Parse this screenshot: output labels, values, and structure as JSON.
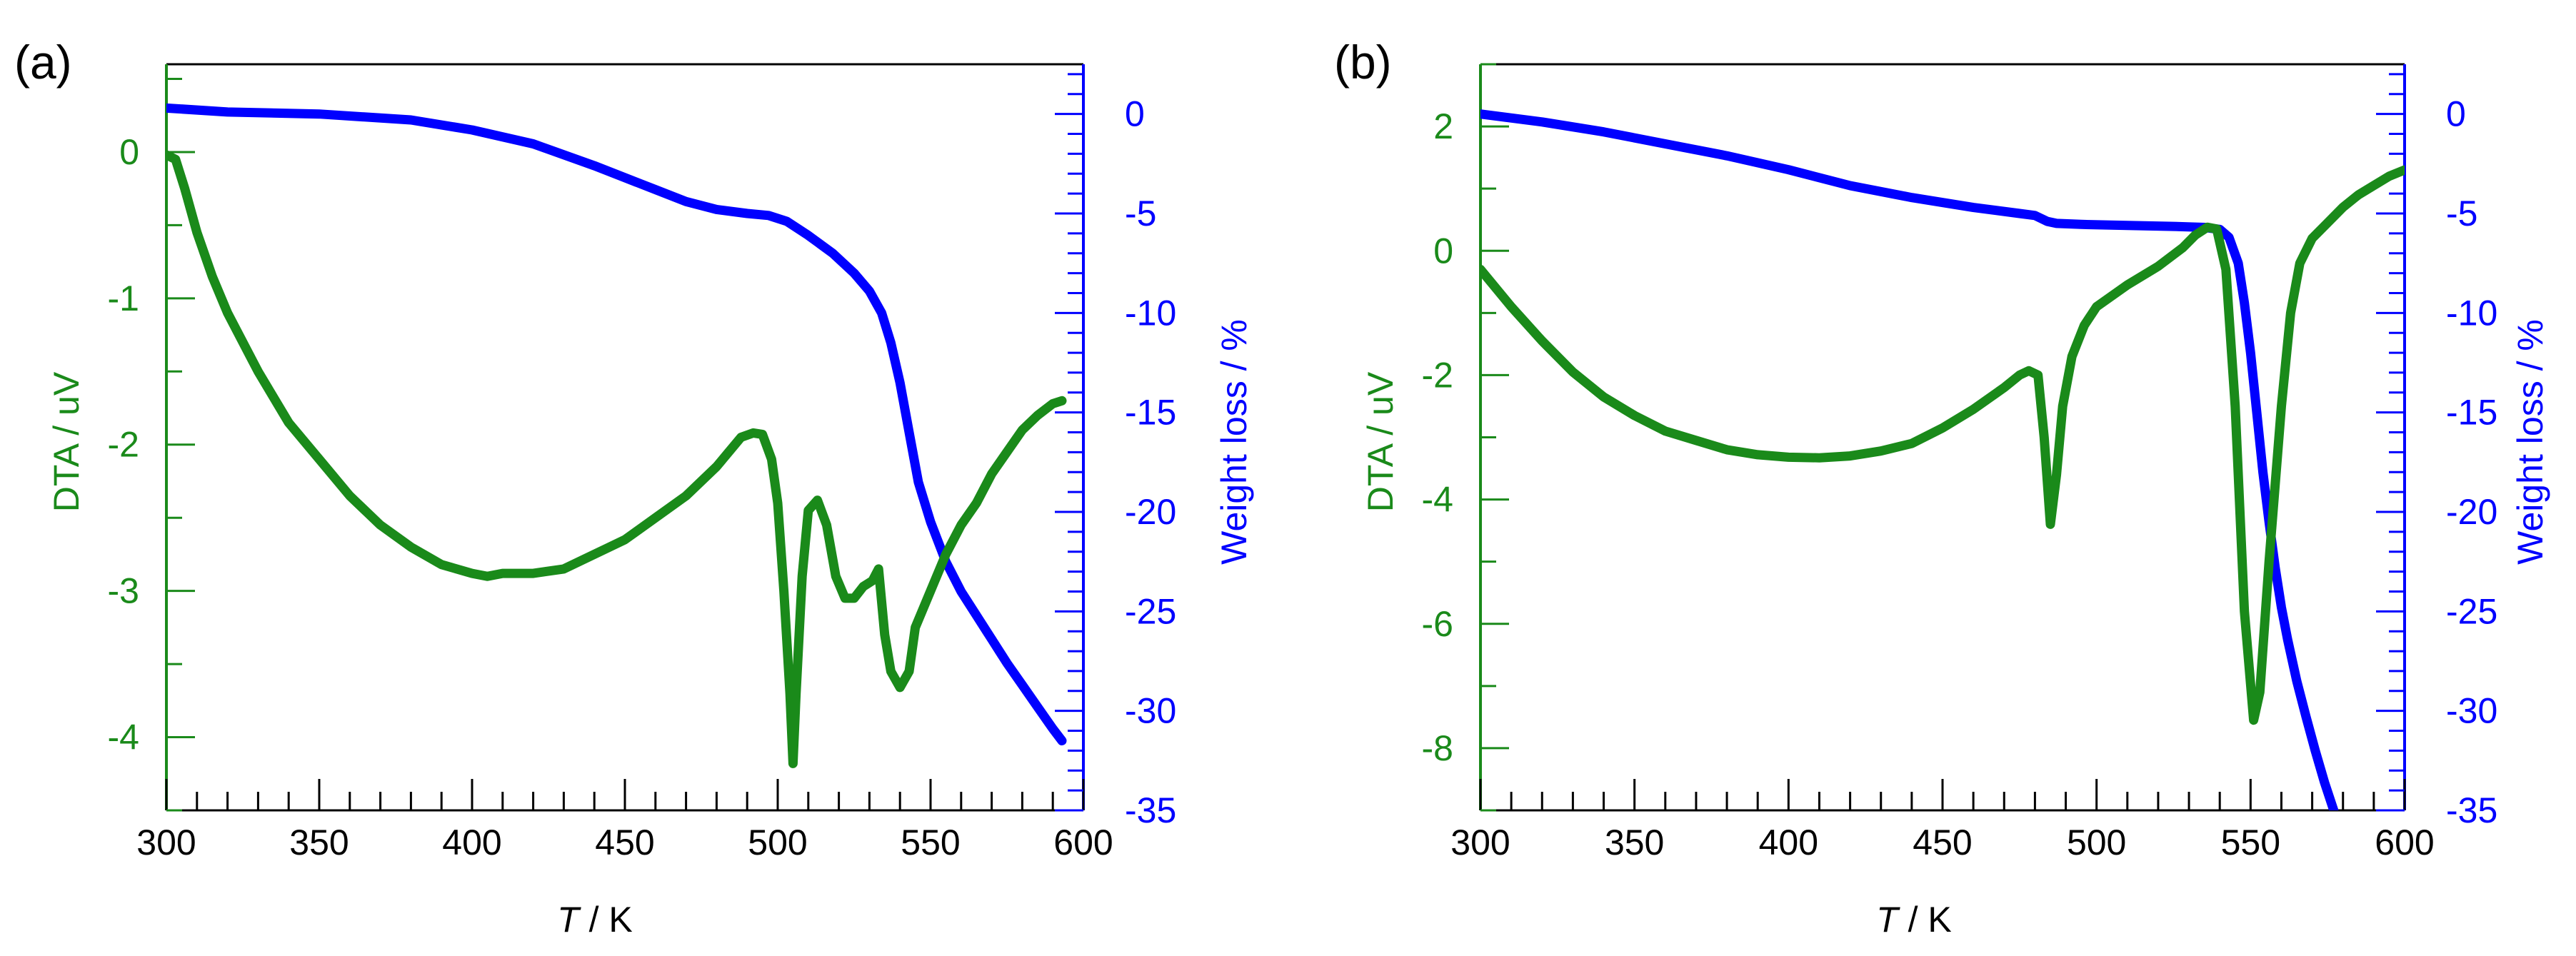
{
  "figure": {
    "panels": [
      "(a)",
      "(b)"
    ]
  },
  "colors": {
    "dta": "#1a8a1a",
    "weight": "#0000ff",
    "axis": "#000000"
  },
  "chart_data": [
    {
      "type": "line",
      "panel_label": "(a)",
      "xlabel_var": "T",
      "xlabel_unit": " / K",
      "ylabel_left": "DTA / uV",
      "ylabel_right": "Weight loss / %",
      "xlim": [
        300,
        600
      ],
      "ylim_left": [
        -4.5,
        0.6
      ],
      "ylim_right": [
        -35,
        2.5
      ],
      "xticks": [
        300,
        350,
        400,
        450,
        500,
        550,
        600
      ],
      "yticks_left": [
        0,
        -1,
        -2,
        -3,
        -4
      ],
      "yticks_right": [
        0,
        -5,
        -10,
        -15,
        -20,
        -25,
        -30,
        -35
      ],
      "series": [
        {
          "axis": "left",
          "points": [
            [
              300,
              -0.02
            ],
            [
              303,
              -0.05
            ],
            [
              306,
              -0.25
            ],
            [
              310,
              -0.55
            ],
            [
              315,
              -0.85
            ],
            [
              320,
              -1.1
            ],
            [
              330,
              -1.5
            ],
            [
              340,
              -1.85
            ],
            [
              350,
              -2.1
            ],
            [
              360,
              -2.35
            ],
            [
              370,
              -2.55
            ],
            [
              380,
              -2.7
            ],
            [
              390,
              -2.82
            ],
            [
              400,
              -2.88
            ],
            [
              405,
              -2.9
            ],
            [
              410,
              -2.88
            ],
            [
              420,
              -2.88
            ],
            [
              430,
              -2.85
            ],
            [
              440,
              -2.75
            ],
            [
              450,
              -2.65
            ],
            [
              460,
              -2.5
            ],
            [
              470,
              -2.35
            ],
            [
              480,
              -2.15
            ],
            [
              488,
              -1.95
            ],
            [
              492,
              -1.92
            ],
            [
              495,
              -1.93
            ],
            [
              498,
              -2.1
            ],
            [
              500,
              -2.4
            ],
            [
              502,
              -3.0
            ],
            [
              504,
              -3.7
            ],
            [
              505,
              -4.18
            ],
            [
              506,
              -3.7
            ],
            [
              508,
              -2.9
            ],
            [
              510,
              -2.45
            ],
            [
              513,
              -2.38
            ],
            [
              516,
              -2.55
            ],
            [
              519,
              -2.9
            ],
            [
              522,
              -3.05
            ],
            [
              525,
              -3.05
            ],
            [
              528,
              -2.97
            ],
            [
              531,
              -2.93
            ],
            [
              533,
              -2.85
            ],
            [
              535,
              -3.3
            ],
            [
              537,
              -3.55
            ],
            [
              540,
              -3.66
            ],
            [
              543,
              -3.55
            ],
            [
              545,
              -3.25
            ],
            [
              550,
              -3.0
            ],
            [
              555,
              -2.75
            ],
            [
              560,
              -2.55
            ],
            [
              565,
              -2.4
            ],
            [
              570,
              -2.2
            ],
            [
              575,
              -2.05
            ],
            [
              580,
              -1.9
            ],
            [
              585,
              -1.8
            ],
            [
              590,
              -1.72
            ],
            [
              593,
              -1.7
            ]
          ]
        },
        {
          "axis": "right",
          "points": [
            [
              300,
              0.3
            ],
            [
              320,
              0.1
            ],
            [
              350,
              0.0
            ],
            [
              380,
              -0.3
            ],
            [
              400,
              -0.8
            ],
            [
              420,
              -1.5
            ],
            [
              440,
              -2.6
            ],
            [
              460,
              -3.8
            ],
            [
              470,
              -4.4
            ],
            [
              480,
              -4.8
            ],
            [
              490,
              -5.0
            ],
            [
              497,
              -5.1
            ],
            [
              503,
              -5.4
            ],
            [
              510,
              -6.1
            ],
            [
              518,
              -7.0
            ],
            [
              525,
              -8.0
            ],
            [
              530,
              -8.9
            ],
            [
              534,
              -10.0
            ],
            [
              537,
              -11.5
            ],
            [
              540,
              -13.5
            ],
            [
              543,
              -16.0
            ],
            [
              546,
              -18.5
            ],
            [
              550,
              -20.5
            ],
            [
              555,
              -22.5
            ],
            [
              560,
              -24.0
            ],
            [
              565,
              -25.2
            ],
            [
              570,
              -26.4
            ],
            [
              575,
              -27.6
            ],
            [
              580,
              -28.7
            ],
            [
              585,
              -29.8
            ],
            [
              590,
              -30.9
            ],
            [
              593,
              -31.5
            ]
          ]
        }
      ]
    },
    {
      "type": "line",
      "panel_label": "(b)",
      "xlabel_var": "T",
      "xlabel_unit": " / K",
      "ylabel_left": "DTA / uV",
      "ylabel_right": "Weight loss / %",
      "xlim": [
        300,
        600
      ],
      "ylim_left": [
        -9,
        3
      ],
      "ylim_right": [
        -35,
        2.5
      ],
      "xticks": [
        300,
        350,
        400,
        450,
        500,
        550,
        600
      ],
      "yticks_left": [
        2,
        0,
        -2,
        -4,
        -6,
        -8
      ],
      "yticks_right": [
        0,
        -5,
        -10,
        -15,
        -20,
        -25,
        -30,
        -35
      ],
      "series": [
        {
          "axis": "left",
          "points": [
            [
              300,
              -0.3
            ],
            [
              310,
              -0.9
            ],
            [
              320,
              -1.45
            ],
            [
              330,
              -1.95
            ],
            [
              340,
              -2.35
            ],
            [
              350,
              -2.65
            ],
            [
              360,
              -2.9
            ],
            [
              370,
              -3.05
            ],
            [
              380,
              -3.2
            ],
            [
              390,
              -3.28
            ],
            [
              400,
              -3.32
            ],
            [
              410,
              -3.33
            ],
            [
              420,
              -3.3
            ],
            [
              430,
              -3.22
            ],
            [
              440,
              -3.1
            ],
            [
              450,
              -2.85
            ],
            [
              460,
              -2.55
            ],
            [
              470,
              -2.2
            ],
            [
              475,
              -2.0
            ],
            [
              478,
              -1.93
            ],
            [
              481,
              -2.0
            ],
            [
              483,
              -3.0
            ],
            [
              485,
              -4.4
            ],
            [
              487,
              -3.6
            ],
            [
              489,
              -2.5
            ],
            [
              492,
              -1.7
            ],
            [
              496,
              -1.2
            ],
            [
              500,
              -0.9
            ],
            [
              510,
              -0.55
            ],
            [
              520,
              -0.25
            ],
            [
              528,
              0.05
            ],
            [
              532,
              0.25
            ],
            [
              536,
              0.38
            ],
            [
              539,
              0.35
            ],
            [
              542,
              -0.3
            ],
            [
              545,
              -2.5
            ],
            [
              548,
              -5.8
            ],
            [
              551,
              -7.55
            ],
            [
              553,
              -7.1
            ],
            [
              556,
              -5.0
            ],
            [
              560,
              -2.5
            ],
            [
              563,
              -1.0
            ],
            [
              566,
              -0.2
            ],
            [
              570,
              0.2
            ],
            [
              575,
              0.45
            ],
            [
              580,
              0.7
            ],
            [
              585,
              0.9
            ],
            [
              590,
              1.05
            ],
            [
              595,
              1.2
            ],
            [
              600,
              1.3
            ]
          ]
        },
        {
          "axis": "right",
          "points": [
            [
              300,
              0.0
            ],
            [
              320,
              -0.4
            ],
            [
              340,
              -0.9
            ],
            [
              360,
              -1.5
            ],
            [
              380,
              -2.1
            ],
            [
              400,
              -2.8
            ],
            [
              420,
              -3.6
            ],
            [
              440,
              -4.2
            ],
            [
              460,
              -4.7
            ],
            [
              475,
              -5.0
            ],
            [
              480,
              -5.1
            ],
            [
              484,
              -5.4
            ],
            [
              487,
              -5.5
            ],
            [
              495,
              -5.55
            ],
            [
              510,
              -5.6
            ],
            [
              525,
              -5.65
            ],
            [
              535,
              -5.7
            ],
            [
              540,
              -5.8
            ],
            [
              543,
              -6.2
            ],
            [
              546,
              -7.5
            ],
            [
              548,
              -9.5
            ],
            [
              550,
              -12.0
            ],
            [
              552,
              -15.0
            ],
            [
              554,
              -18.0
            ],
            [
              556,
              -20.5
            ],
            [
              558,
              -22.8
            ],
            [
              560,
              -24.8
            ],
            [
              562,
              -26.4
            ],
            [
              565,
              -28.5
            ],
            [
              568,
              -30.3
            ],
            [
              571,
              -32.0
            ],
            [
              574,
              -33.6
            ],
            [
              577,
              -35.0
            ]
          ]
        }
      ]
    }
  ]
}
